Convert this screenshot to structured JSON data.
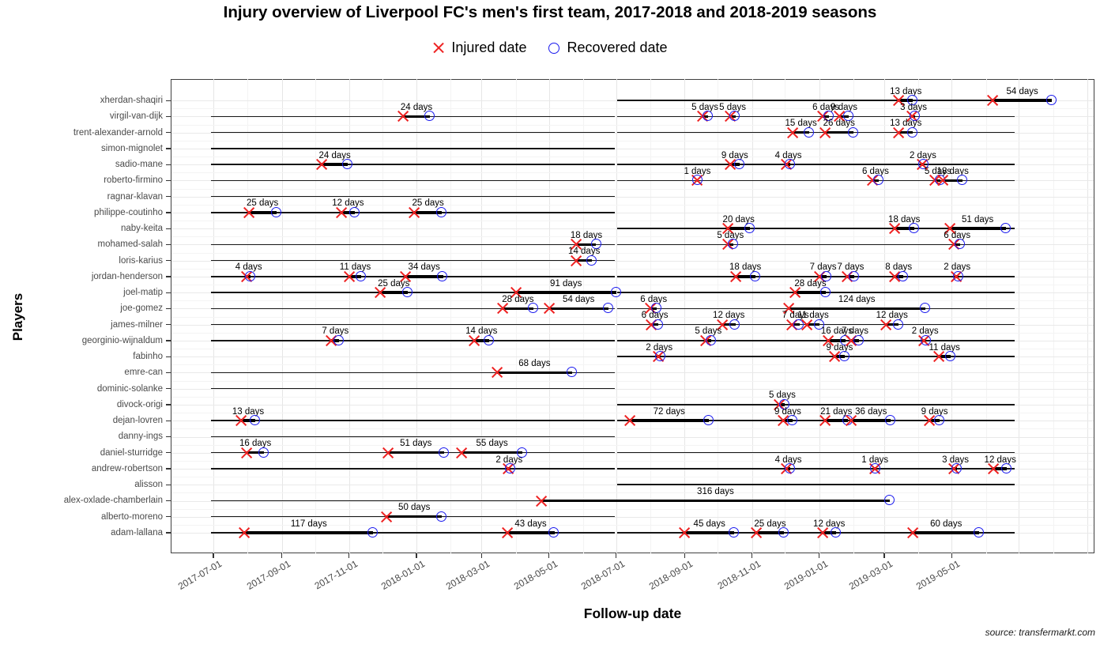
{
  "title": "Injury overview of Liverpool FC's men's first team, 2017-2018 and 2018-2019 seasons",
  "legend": {
    "injured_label": "Injured date",
    "recovered_label": "Recovered date",
    "injured_color": "#ee2222",
    "recovered_color": "#1a1aee"
  },
  "x_axis": {
    "title": "Follow-up date",
    "tick_labels": [
      "2017-07-01",
      "2017-09-01",
      "2017-11-01",
      "2018-01-01",
      "2018-03-01",
      "2018-05-01",
      "2018-07-01",
      "2018-09-01",
      "2018-11-01",
      "2019-01-01",
      "2019-03-01",
      "2019-05-01"
    ]
  },
  "y_axis": {
    "title": "Players"
  },
  "source": "source: transfermarkt.com",
  "chart_data": {
    "type": "timeline",
    "title": "Injury overview of Liverpool FC's men's first team, 2017-2018 and 2018-2019 seasons",
    "days_suffix": " days",
    "x_domain": [
      "2017-05-23",
      "2019-09-06"
    ],
    "axis_tick_dates": [
      "2017-07-01",
      "2017-09-01",
      "2017-11-01",
      "2018-01-01",
      "2018-03-01",
      "2018-05-01",
      "2018-07-01",
      "2018-09-01",
      "2018-11-01",
      "2019-01-01",
      "2019-03-01",
      "2019-05-01"
    ],
    "gridline_only_dates": [
      "2019-07-01",
      "2019-09-01"
    ],
    "minor_gridline_dates": [
      "2017-08-01",
      "2017-10-01",
      "2017-12-01",
      "2018-02-01",
      "2018-04-01",
      "2018-06-01",
      "2018-08-01",
      "2018-10-01",
      "2018-12-01",
      "2019-02-01",
      "2019-04-01",
      "2019-06-01",
      "2019-08-01"
    ],
    "season1": [
      "2017-06-29",
      "2018-06-30"
    ],
    "season2": [
      "2018-07-02",
      "2019-06-27"
    ],
    "players": [
      {
        "name": "xherdan-shaqiri",
        "lines": [
          [
            "2018-07-02",
            "2019-07-31"
          ]
        ],
        "injuries": [
          {
            "date": "2019-03-14",
            "days": 13
          },
          {
            "date": "2019-06-07",
            "days": 54
          }
        ]
      },
      {
        "name": "virgil-van-dijk",
        "lines": [
          [
            "2017-06-29",
            "2018-06-30"
          ],
          [
            "2018-07-02",
            "2019-06-27"
          ]
        ],
        "injuries": [
          {
            "date": "2017-12-20",
            "days": 24
          },
          {
            "date": "2018-09-17",
            "days": 5
          },
          {
            "date": "2018-10-12",
            "days": 5
          },
          {
            "date": "2019-01-04",
            "days": 6
          },
          {
            "date": "2019-01-19",
            "days": 9
          },
          {
            "date": "2019-03-26",
            "days": 3
          }
        ]
      },
      {
        "name": "trent-alexander-arnold",
        "lines": [
          [
            "2017-06-29",
            "2018-06-30"
          ],
          [
            "2018-07-02",
            "2019-06-27"
          ]
        ],
        "injuries": [
          {
            "date": "2018-12-08",
            "days": 15
          },
          {
            "date": "2019-01-06",
            "days": 26
          },
          {
            "date": "2019-03-14",
            "days": 13
          }
        ]
      },
      {
        "name": "simon-mignolet",
        "lines": [
          [
            "2017-06-29",
            "2018-06-30"
          ]
        ],
        "injuries": []
      },
      {
        "name": "sadio-mane",
        "lines": [
          [
            "2017-06-29",
            "2018-06-30"
          ],
          [
            "2018-07-02",
            "2019-06-27"
          ]
        ],
        "injuries": [
          {
            "date": "2017-10-07",
            "days": 24
          },
          {
            "date": "2018-10-12",
            "days": 9
          },
          {
            "date": "2018-12-02",
            "days": 4
          },
          {
            "date": "2019-04-04",
            "days": 2
          }
        ]
      },
      {
        "name": "roberto-firmino",
        "lines": [
          [
            "2017-06-29",
            "2018-06-30"
          ],
          [
            "2018-07-02",
            "2019-06-27"
          ]
        ],
        "injuries": [
          {
            "date": "2018-09-12",
            "days": 1
          },
          {
            "date": "2019-02-18",
            "days": 6
          },
          {
            "date": "2019-04-16",
            "days": 5
          },
          {
            "date": "2019-04-23",
            "days": 18
          }
        ]
      },
      {
        "name": "ragnar-klavan",
        "lines": [
          [
            "2017-06-29",
            "2018-06-30"
          ]
        ],
        "injuries": []
      },
      {
        "name": "philippe-coutinho",
        "lines": [
          [
            "2017-06-29",
            "2018-06-30"
          ]
        ],
        "injuries": [
          {
            "date": "2017-08-02",
            "days": 25
          },
          {
            "date": "2017-10-25",
            "days": 12
          },
          {
            "date": "2017-12-30",
            "days": 25
          }
        ]
      },
      {
        "name": "naby-keita",
        "lines": [
          [
            "2018-07-02",
            "2019-06-27"
          ]
        ],
        "injuries": [
          {
            "date": "2018-10-10",
            "days": 20
          },
          {
            "date": "2019-03-10",
            "days": 18
          },
          {
            "date": "2019-04-29",
            "days": 51
          }
        ]
      },
      {
        "name": "mohamed-salah",
        "lines": [
          [
            "2017-06-29",
            "2018-06-30"
          ],
          [
            "2018-07-02",
            "2019-06-27"
          ]
        ],
        "injuries": [
          {
            "date": "2018-05-26",
            "days": 18
          },
          {
            "date": "2018-10-10",
            "days": 5
          },
          {
            "date": "2019-05-03",
            "days": 6
          }
        ]
      },
      {
        "name": "loris-karius",
        "lines": [
          [
            "2017-06-29",
            "2018-06-30"
          ]
        ],
        "injuries": [
          {
            "date": "2018-05-26",
            "days": 14
          }
        ]
      },
      {
        "name": "jordan-henderson",
        "lines": [
          [
            "2017-06-29",
            "2018-06-30"
          ],
          [
            "2018-07-02",
            "2019-06-27"
          ]
        ],
        "injuries": [
          {
            "date": "2017-07-31",
            "days": 4
          },
          {
            "date": "2017-11-01",
            "days": 11
          },
          {
            "date": "2017-12-22",
            "days": 34
          },
          {
            "date": "2018-10-17",
            "days": 18
          },
          {
            "date": "2019-01-01",
            "days": 7
          },
          {
            "date": "2019-01-26",
            "days": 7
          },
          {
            "date": "2019-03-10",
            "days": 8
          },
          {
            "date": "2019-05-05",
            "days": 2
          }
        ]
      },
      {
        "name": "joel-matip",
        "lines": [
          [
            "2017-06-29",
            "2018-06-30"
          ],
          [
            "2018-07-02",
            "2019-06-27"
          ]
        ],
        "injuries": [
          {
            "date": "2017-11-29",
            "days": 25
          },
          {
            "date": "2018-04-01",
            "days": 91
          },
          {
            "date": "2018-12-10",
            "days": 28
          }
        ]
      },
      {
        "name": "joe-gomez",
        "lines": [
          [
            "2017-06-29",
            "2018-06-30"
          ],
          [
            "2018-07-02",
            "2019-06-27"
          ]
        ],
        "injuries": [
          {
            "date": "2018-03-20",
            "days": 28
          },
          {
            "date": "2018-05-01",
            "days": 54
          },
          {
            "date": "2018-08-01",
            "days": 6
          },
          {
            "date": "2018-12-04",
            "days": 124
          }
        ]
      },
      {
        "name": "james-milner",
        "lines": [
          [
            "2017-06-29",
            "2018-06-30"
          ],
          [
            "2018-07-02",
            "2019-06-27"
          ]
        ],
        "injuries": [
          {
            "date": "2018-08-02",
            "days": 6
          },
          {
            "date": "2018-10-05",
            "days": 12
          },
          {
            "date": "2018-12-07",
            "days": 7
          },
          {
            "date": "2018-12-21",
            "days": 11
          },
          {
            "date": "2019-03-02",
            "days": 12
          }
        ]
      },
      {
        "name": "georginio-wijnaldum",
        "lines": [
          [
            "2017-06-29",
            "2018-06-30"
          ],
          [
            "2018-07-02",
            "2019-06-27"
          ]
        ],
        "injuries": [
          {
            "date": "2017-10-16",
            "days": 7
          },
          {
            "date": "2018-02-22",
            "days": 14
          },
          {
            "date": "2018-09-20",
            "days": 5
          },
          {
            "date": "2019-01-09",
            "days": 16
          },
          {
            "date": "2019-01-30",
            "days": 7
          },
          {
            "date": "2019-04-06",
            "days": 2
          }
        ]
      },
      {
        "name": "fabinho",
        "lines": [
          [
            "2018-07-02",
            "2019-06-27"
          ]
        ],
        "injuries": [
          {
            "date": "2018-08-08",
            "days": 2
          },
          {
            "date": "2019-01-15",
            "days": 9
          },
          {
            "date": "2019-04-19",
            "days": 11
          }
        ]
      },
      {
        "name": "emre-can",
        "lines": [
          [
            "2017-06-29",
            "2018-06-30"
          ]
        ],
        "injuries": [
          {
            "date": "2018-03-15",
            "days": 68
          }
        ]
      },
      {
        "name": "dominic-solanke",
        "lines": [
          [
            "2017-06-29",
            "2018-06-30"
          ]
        ],
        "injuries": []
      },
      {
        "name": "divock-origi",
        "lines": [
          [
            "2018-07-02",
            "2019-06-27"
          ]
        ],
        "injuries": [
          {
            "date": "2018-11-26",
            "days": 5
          }
        ]
      },
      {
        "name": "dejan-lovren",
        "lines": [
          [
            "2017-06-29",
            "2018-06-30"
          ],
          [
            "2018-07-02",
            "2019-06-27"
          ]
        ],
        "injuries": [
          {
            "date": "2017-07-26",
            "days": 13
          },
          {
            "date": "2018-07-13",
            "days": 72
          },
          {
            "date": "2018-11-29",
            "days": 9
          },
          {
            "date": "2019-01-06",
            "days": 21
          },
          {
            "date": "2019-01-30",
            "days": 36
          },
          {
            "date": "2019-04-11",
            "days": 9
          }
        ]
      },
      {
        "name": "danny-ings",
        "lines": [
          [
            "2017-06-29",
            "2018-06-30"
          ]
        ],
        "injuries": []
      },
      {
        "name": "daniel-sturridge",
        "lines": [
          [
            "2017-06-29",
            "2018-06-30"
          ],
          [
            "2018-07-02",
            "2019-06-27"
          ]
        ],
        "injuries": [
          {
            "date": "2017-07-31",
            "days": 16
          },
          {
            "date": "2017-12-06",
            "days": 51
          },
          {
            "date": "2018-02-11",
            "days": 55
          }
        ]
      },
      {
        "name": "andrew-robertson",
        "lines": [
          [
            "2017-06-29",
            "2018-06-30"
          ],
          [
            "2018-07-02",
            "2019-06-27"
          ]
        ],
        "injuries": [
          {
            "date": "2018-03-25",
            "days": 2
          },
          {
            "date": "2018-12-02",
            "days": 4
          },
          {
            "date": "2019-02-20",
            "days": 1
          },
          {
            "date": "2019-05-03",
            "days": 3
          },
          {
            "date": "2019-06-08",
            "days": 12
          }
        ]
      },
      {
        "name": "alisson",
        "lines": [
          [
            "2018-07-02",
            "2019-06-27"
          ]
        ],
        "injuries": []
      },
      {
        "name": "alex-oxlade-chamberlain",
        "lines": [
          [
            "2017-06-29",
            "2019-03-06"
          ]
        ],
        "injuries": [
          {
            "date": "2018-04-24",
            "days": 316
          }
        ]
      },
      {
        "name": "alberto-moreno",
        "lines": [
          [
            "2017-06-29",
            "2018-06-30"
          ]
        ],
        "injuries": [
          {
            "date": "2017-12-05",
            "days": 50
          }
        ]
      },
      {
        "name": "adam-lallana",
        "lines": [
          [
            "2017-06-29",
            "2018-06-30"
          ],
          [
            "2018-07-02",
            "2019-06-27"
          ]
        ],
        "injuries": [
          {
            "date": "2017-07-29",
            "days": 117
          },
          {
            "date": "2018-03-24",
            "days": 43
          },
          {
            "date": "2018-09-01",
            "days": 45
          },
          {
            "date": "2018-11-05",
            "days": 25
          },
          {
            "date": "2019-01-04",
            "days": 12
          },
          {
            "date": "2019-03-27",
            "days": 60
          }
        ]
      }
    ]
  }
}
